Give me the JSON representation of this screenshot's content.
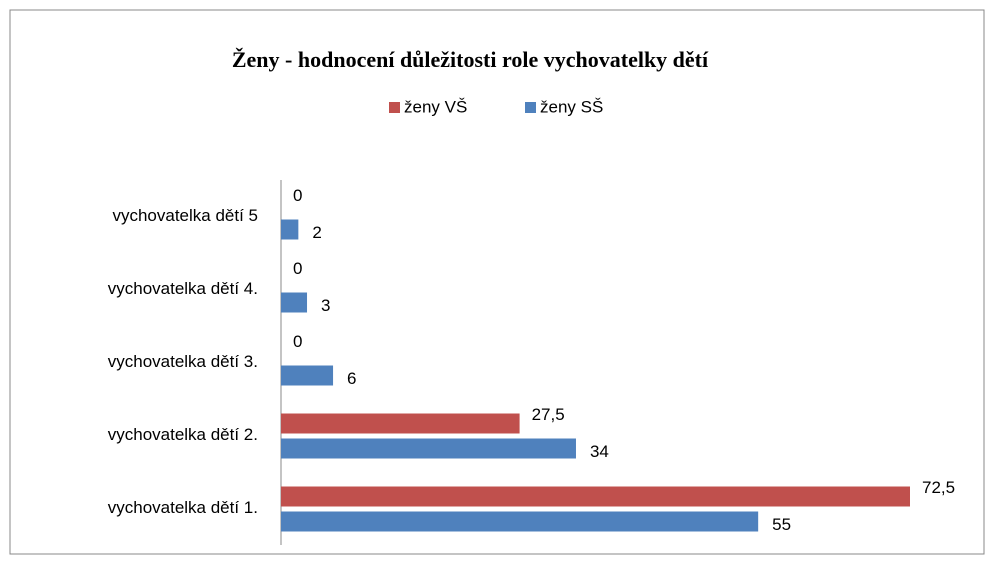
{
  "chart_data": {
    "type": "hbar",
    "title": "Ženy - hodnocení důležitosti role vychovatelky dětí",
    "categories": [
      "vychovatelka dětí 1.",
      "vychovatelka dětí 2.",
      "vychovatelka dětí 3.",
      "vychovatelka dětí 4.",
      "vychovatelka dětí 5"
    ],
    "series": [
      {
        "name": "ženy VŠ",
        "color": "#c0504d",
        "values": [
          72.5,
          27.5,
          0,
          0,
          0
        ],
        "value_labels": [
          "72,5",
          "27,5",
          "0",
          "0",
          "0"
        ]
      },
      {
        "name": "ženy SŠ",
        "color": "#4f81bd",
        "values": [
          55,
          34,
          6,
          3,
          2
        ]
      }
    ],
    "legend": "top"
  }
}
